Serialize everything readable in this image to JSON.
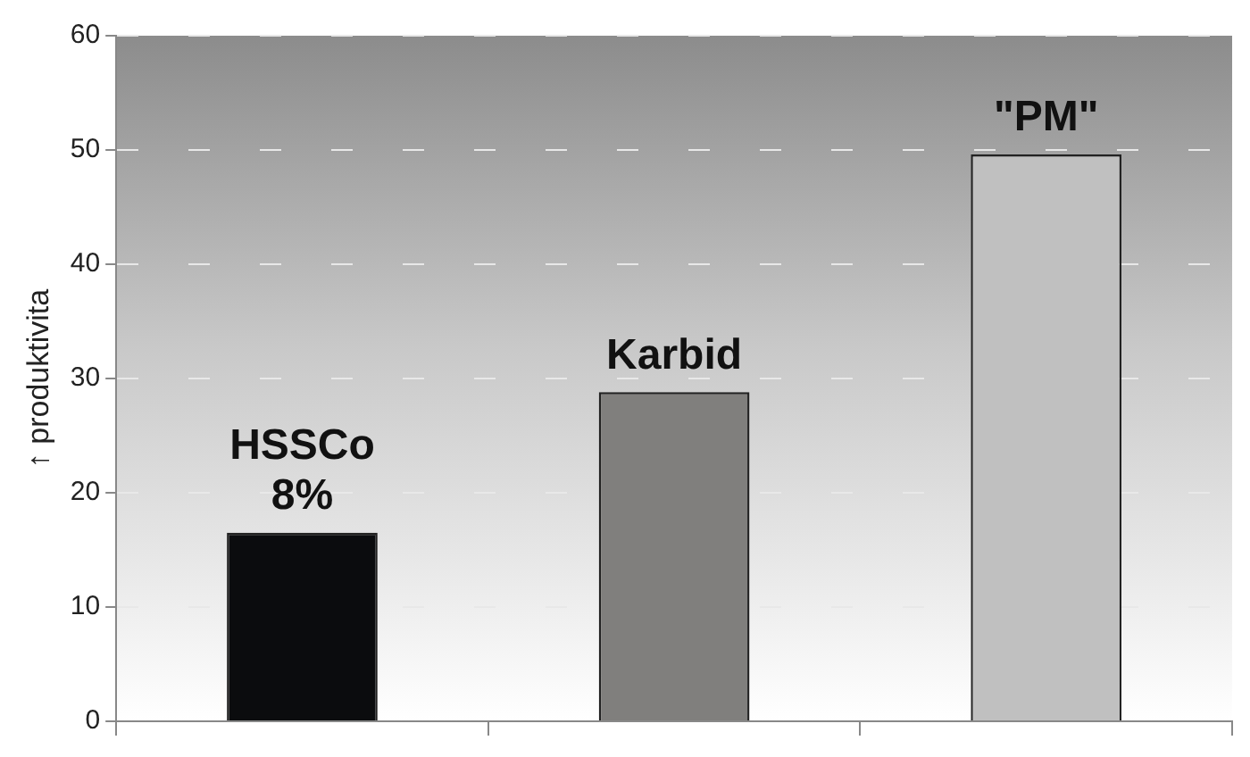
{
  "chart_data": {
    "type": "bar",
    "ylabel": "↑ produktivita",
    "categories": [
      "HSSCo 8%",
      "Karbid",
      "\"PM\""
    ],
    "values": [
      16.5,
      28.8,
      49.6
    ],
    "colors": [
      "#0b0c0e",
      "#807f7d",
      "#c0c0c0"
    ],
    "ylim": [
      0,
      60
    ],
    "yticks": [
      0,
      10,
      20,
      30,
      40,
      50,
      60
    ],
    "grid": "y",
    "tick_labels": "y"
  }
}
